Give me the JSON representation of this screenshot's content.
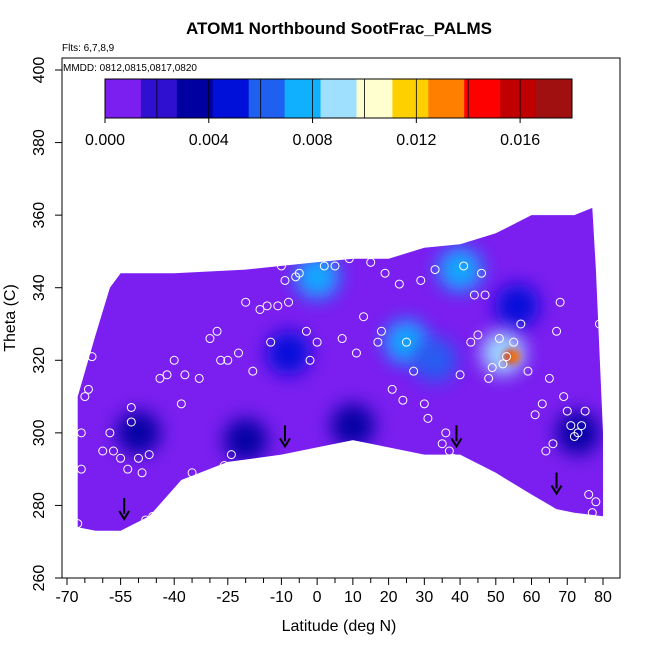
{
  "chart_data": {
    "type": "heatmap",
    "title": "ATOM1 Northbound SootFrac_PALMS",
    "annotations": [
      "Flts: 6,7,8,9",
      "MMDD: 0812,0815,0817,0820"
    ],
    "xlabel": "Latitude (deg N)",
    "ylabel": "Theta (C)",
    "xlim": [
      -70,
      80
    ],
    "ylim": [
      260,
      400
    ],
    "x_ticks": [
      "-70",
      "-55",
      "-40",
      "-25",
      "-10",
      "0",
      "10",
      "20",
      "30",
      "40",
      "50",
      "60",
      "70",
      "80"
    ],
    "x_tick_values": [
      -70,
      -55,
      -40,
      -25,
      -10,
      0,
      10,
      20,
      30,
      40,
      50,
      60,
      70,
      80
    ],
    "x_minor_ticks": [
      -65,
      -60,
      -50,
      -45,
      -35,
      -30,
      -20,
      -15,
      -5,
      5,
      15,
      25,
      35,
      45,
      55,
      65,
      75
    ],
    "y_ticks": [
      "260",
      "280",
      "300",
      "320",
      "340",
      "360",
      "380",
      "400"
    ],
    "y_tick_values": [
      260,
      280,
      300,
      320,
      340,
      360,
      380,
      400
    ],
    "colorbar": {
      "range": [
        0,
        0.018
      ],
      "tick_labels": [
        "0.000",
        "0.004",
        "0.008",
        "0.012",
        "0.016"
      ],
      "tick_values": [
        0,
        0.004,
        0.008,
        0.012,
        0.016
      ],
      "colors": [
        "#7a1ff0",
        "#3010d0",
        "#0000a0",
        "#0010d8",
        "#2060f0",
        "#10b0ff",
        "#a0e0ff",
        "#ffffd0",
        "#ffd000",
        "#ff8000",
        "#ff0000",
        "#c00000",
        "#a01010"
      ]
    },
    "domain_outline": [
      [
        -67,
        274
      ],
      [
        -62,
        273
      ],
      [
        -55,
        273
      ],
      [
        -47,
        277
      ],
      [
        -38,
        287
      ],
      [
        -25,
        292
      ],
      [
        -10,
        294
      ],
      [
        0,
        296
      ],
      [
        10,
        298
      ],
      [
        20,
        296
      ],
      [
        30,
        294
      ],
      [
        40,
        294
      ],
      [
        50,
        289
      ],
      [
        60,
        283
      ],
      [
        67,
        279
      ],
      [
        72,
        278
      ],
      [
        80,
        277
      ],
      [
        80,
        300
      ],
      [
        78,
        345
      ],
      [
        77,
        362
      ],
      [
        72,
        360
      ],
      [
        60,
        360
      ],
      [
        50,
        355
      ],
      [
        40,
        352
      ],
      [
        30,
        351
      ],
      [
        20,
        348
      ],
      [
        10,
        348
      ],
      [
        0,
        347
      ],
      [
        -10,
        346
      ],
      [
        -20,
        345
      ],
      [
        -40,
        344
      ],
      [
        -55,
        344
      ],
      [
        -58,
        340
      ],
      [
        -62,
        327
      ],
      [
        -67,
        310
      ]
    ],
    "enhanced_regions": [
      {
        "x": 0,
        "y": 343,
        "value": 0.008
      },
      {
        "x": 40,
        "y": 345,
        "value": 0.007
      },
      {
        "x": 25,
        "y": 325,
        "value": 0.007
      },
      {
        "x": 33,
        "y": 320,
        "value": 0.006
      },
      {
        "x": -8,
        "y": 322,
        "value": 0.005
      },
      {
        "x": 56,
        "y": 335,
        "value": 0.005
      },
      {
        "x": 52,
        "y": 322,
        "value": 0.009
      },
      {
        "x": 54,
        "y": 321,
        "value": 0.016
      },
      {
        "x": 55,
        "y": 321,
        "value": 0.013
      },
      {
        "x": 73,
        "y": 300,
        "value": 0.004
      },
      {
        "x": -50,
        "y": 300,
        "value": 0.003
      },
      {
        "x": -20,
        "y": 298,
        "value": 0.003
      },
      {
        "x": 10,
        "y": 302,
        "value": 0.003
      }
    ],
    "sample_points": [
      [
        -67,
        275
      ],
      [
        -66,
        290
      ],
      [
        -66,
        300
      ],
      [
        -65,
        310
      ],
      [
        -64,
        312
      ],
      [
        -63,
        321
      ],
      [
        -60,
        295
      ],
      [
        -58,
        300
      ],
      [
        -57,
        295
      ],
      [
        -55,
        293
      ],
      [
        -53,
        290
      ],
      [
        -52,
        303
      ],
      [
        -52,
        307
      ],
      [
        -50,
        293
      ],
      [
        -49,
        289
      ],
      [
        -47,
        294
      ],
      [
        -48,
        276
      ],
      [
        -46,
        277
      ],
      [
        -44,
        315
      ],
      [
        -42,
        316
      ],
      [
        -40,
        320
      ],
      [
        -38,
        308
      ],
      [
        -37,
        316
      ],
      [
        -35,
        289
      ],
      [
        -33,
        315
      ],
      [
        -30,
        326
      ],
      [
        -28,
        328
      ],
      [
        -27,
        320
      ],
      [
        -26,
        291
      ],
      [
        -25,
        320
      ],
      [
        -24,
        294
      ],
      [
        -22,
        322
      ],
      [
        -20,
        336
      ],
      [
        -18,
        317
      ],
      [
        -16,
        334
      ],
      [
        -14,
        335
      ],
      [
        -13,
        325
      ],
      [
        -11,
        335
      ],
      [
        -10,
        346
      ],
      [
        -9,
        342
      ],
      [
        -8,
        336
      ],
      [
        -6,
        343
      ],
      [
        -5,
        344
      ],
      [
        -3,
        328
      ],
      [
        -2,
        320
      ],
      [
        0,
        325
      ],
      [
        2,
        346
      ],
      [
        5,
        346
      ],
      [
        7,
        326
      ],
      [
        9,
        348
      ],
      [
        11,
        322
      ],
      [
        13,
        332
      ],
      [
        15,
        347
      ],
      [
        17,
        325
      ],
      [
        18,
        328
      ],
      [
        19,
        344
      ],
      [
        21,
        312
      ],
      [
        23,
        341
      ],
      [
        24,
        309
      ],
      [
        25,
        325
      ],
      [
        27,
        317
      ],
      [
        29,
        342
      ],
      [
        30,
        308
      ],
      [
        31,
        304
      ],
      [
        33,
        345
      ],
      [
        35,
        297
      ],
      [
        36,
        300
      ],
      [
        37,
        295
      ],
      [
        38,
        293
      ],
      [
        40,
        316
      ],
      [
        41,
        346
      ],
      [
        43,
        325
      ],
      [
        44,
        338
      ],
      [
        45,
        327
      ],
      [
        46,
        344
      ],
      [
        47,
        338
      ],
      [
        48,
        315
      ],
      [
        49,
        318
      ],
      [
        51,
        326
      ],
      [
        52,
        319
      ],
      [
        53,
        321
      ],
      [
        55,
        325
      ],
      [
        57,
        330
      ],
      [
        59,
        317
      ],
      [
        61,
        305
      ],
      [
        63,
        308
      ],
      [
        64,
        295
      ],
      [
        65,
        315
      ],
      [
        66,
        297
      ],
      [
        67,
        328
      ],
      [
        68,
        336
      ],
      [
        69,
        310
      ],
      [
        70,
        306
      ],
      [
        71,
        302
      ],
      [
        72,
        299
      ],
      [
        73,
        300
      ],
      [
        74,
        302
      ],
      [
        75,
        306
      ],
      [
        76,
        283
      ],
      [
        77,
        278
      ],
      [
        78,
        281
      ],
      [
        79,
        330
      ]
    ],
    "arrow_markers": [
      [
        -54,
        276
      ],
      [
        -9,
        296
      ],
      [
        39,
        296
      ],
      [
        67,
        283
      ]
    ]
  }
}
